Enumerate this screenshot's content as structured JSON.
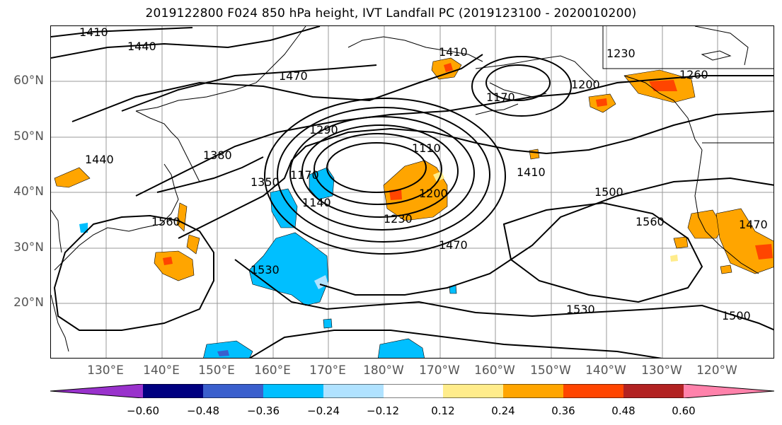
{
  "title": "2019122800 F024 850 hPa height, IVT Landfall PC (2019123100 - 2020010200)",
  "lat_labels": [
    "60°N",
    "50°N",
    "40°N",
    "30°N",
    "20°N"
  ],
  "lon_labels": [
    "130°E",
    "140°E",
    "150°E",
    "160°E",
    "170°E",
    "180°W",
    "170°W",
    "160°W",
    "150°W",
    "140°W",
    "130°W",
    "120°W"
  ],
  "contour_labels": [
    "1410",
    "1440",
    "1470",
    "1410",
    "1170",
    "1200",
    "1230",
    "1260",
    "1290",
    "1380",
    "1350",
    "1440",
    "1110",
    "1170",
    "1140",
    "1200",
    "1230",
    "1410",
    "1500",
    "1560",
    "1470",
    "1530",
    "1560",
    "1530",
    "1500",
    "1470"
  ],
  "colorbar": {
    "ticks": [
      "−0.60",
      "−0.48",
      "−0.36",
      "−0.24",
      "−0.12",
      "0.12",
      "0.24",
      "0.36",
      "0.48",
      "0.60"
    ],
    "colors": [
      "#9932CC",
      "#000080",
      "#3A5FCD",
      "#00BFFF",
      "#B0E2FF",
      "#FFFFFF",
      "#FFEC8B",
      "#FFA500",
      "#FF4500",
      "#B22222",
      "#FF82AB"
    ]
  },
  "shading_colors": {
    "orange": "#FFA500",
    "red": "#FF4500",
    "yellow": "#FFEC8B",
    "blue": "#00BFFF",
    "darkblue": "#3A5FCD"
  }
}
